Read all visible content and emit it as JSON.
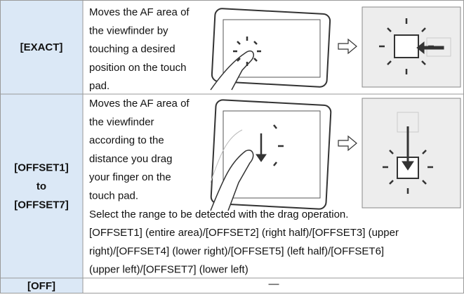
{
  "table": {
    "rows": [
      {
        "label": [
          "[EXACT]"
        ],
        "description": [
          "Moves the AF area of",
          "the viewfinder by",
          "touching a desired",
          "position on the touch",
          "pad."
        ]
      },
      {
        "label": [
          "[OFFSET1]",
          "to",
          "[OFFSET7]"
        ],
        "description": [
          "Moves the AF area of",
          "the viewfinder",
          "according to the",
          "distance you drag",
          "your finger on the",
          "touch pad.",
          "Select the range to be detected with the drag operation.",
          "[OFFSET1] (entire area)/[OFFSET2] (right half)/[OFFSET3] (upper",
          "right)/[OFFSET4] (lower right)/[OFFSET5] (left half)/[OFFSET6]",
          "(upper left)/[OFFSET7] (lower left)"
        ]
      },
      {
        "label": [
          "[OFF]"
        ],
        "description": [
          "—"
        ]
      }
    ]
  }
}
